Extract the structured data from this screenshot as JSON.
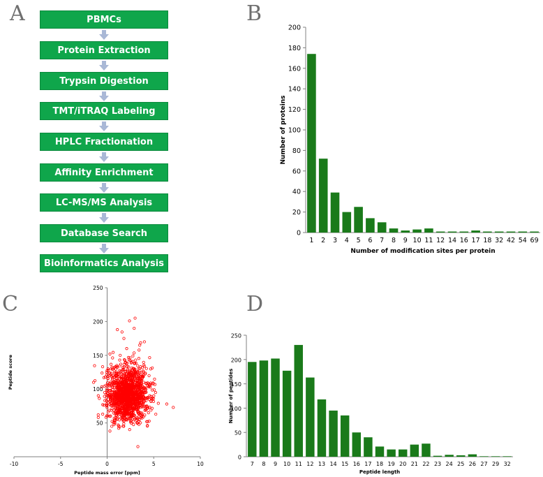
{
  "panels": {
    "a": "A",
    "b": "B",
    "c": "C",
    "d": "D"
  },
  "flowchart": {
    "steps": [
      "PBMCs",
      "Protein Extraction",
      "Trypsin Digestion",
      "TMT/iTRAQ Labeling",
      "HPLC Fractionation",
      "Affinity Enrichment",
      "LC-MS/MS Analysis",
      "Database Search",
      "Bioinformatics Analysis"
    ],
    "box_color": "#0fa64b",
    "arrow_color": "#a9b8d6"
  },
  "chart_data": [
    {
      "id": "B",
      "type": "bar",
      "categories": [
        "1",
        "2",
        "3",
        "4",
        "5",
        "6",
        "7",
        "8",
        "9",
        "10",
        "11",
        "12",
        "14",
        "16",
        "17",
        "18",
        "32",
        "42",
        "54",
        "69"
      ],
      "values": [
        174,
        72,
        39,
        20,
        25,
        14,
        10,
        4,
        2,
        3,
        4,
        1,
        1,
        1,
        2,
        1,
        1,
        1,
        1,
        1
      ],
      "xlabel": "Number of modification sites per protein",
      "ylabel": "Number of proteins",
      "ylim": [
        0,
        200
      ],
      "yticks": [
        0,
        20,
        40,
        60,
        80,
        100,
        120,
        140,
        160,
        180,
        200
      ],
      "color": "#1a7a1a"
    },
    {
      "id": "C",
      "type": "scatter",
      "xlabel": "Peptide mass error [ppm]",
      "ylabel": "Peptide score",
      "xlim": [
        -10,
        10
      ],
      "ylim": [
        0,
        250
      ],
      "xticks": [
        -10,
        -5,
        0,
        5,
        10
      ],
      "yticks": [
        50,
        100,
        150,
        200,
        250
      ],
      "color": "#ff0000",
      "points": [
        [
          3.0,
          205
        ],
        [
          2.4,
          201
        ],
        [
          1.1,
          188
        ],
        [
          2.9,
          190
        ],
        [
          0.3,
          152
        ],
        [
          4.0,
          170
        ],
        [
          6.4,
          78
        ],
        [
          7.1,
          73
        ],
        [
          -0.2,
          118
        ],
        [
          0.5,
          45
        ],
        [
          3.3,
          15
        ],
        [
          0.3,
          38
        ],
        [
          1.4,
          150
        ],
        [
          2.1,
          160
        ],
        [
          3.5,
          165
        ],
        [
          4.5,
          120
        ],
        [
          5.2,
          95
        ],
        [
          0.1,
          130
        ],
        [
          1.8,
          175
        ],
        [
          2.6,
          140
        ]
      ],
      "cluster": {
        "n": 1500,
        "x_mean": 2.2,
        "x_sd": 1.05,
        "y_mean": 80,
        "y_sd": 26,
        "y_min": 40
      }
    },
    {
      "id": "D",
      "type": "bar",
      "categories": [
        "7",
        "8",
        "9",
        "10",
        "11",
        "12",
        "13",
        "14",
        "15",
        "16",
        "17",
        "18",
        "19",
        "20",
        "21",
        "22",
        "23",
        "24",
        "25",
        "26",
        "27",
        "29",
        "32"
      ],
      "values": [
        195,
        198,
        202,
        177,
        230,
        163,
        118,
        95,
        85,
        50,
        40,
        21,
        15,
        15,
        25,
        27,
        2,
        4,
        3,
        5,
        1,
        1,
        1
      ],
      "xlabel": "Peptide length",
      "ylabel": "Number of peptides",
      "ylim": [
        0,
        250
      ],
      "yticks": [
        0,
        50,
        100,
        150,
        200,
        250
      ],
      "color": "#1a7a1a"
    }
  ]
}
